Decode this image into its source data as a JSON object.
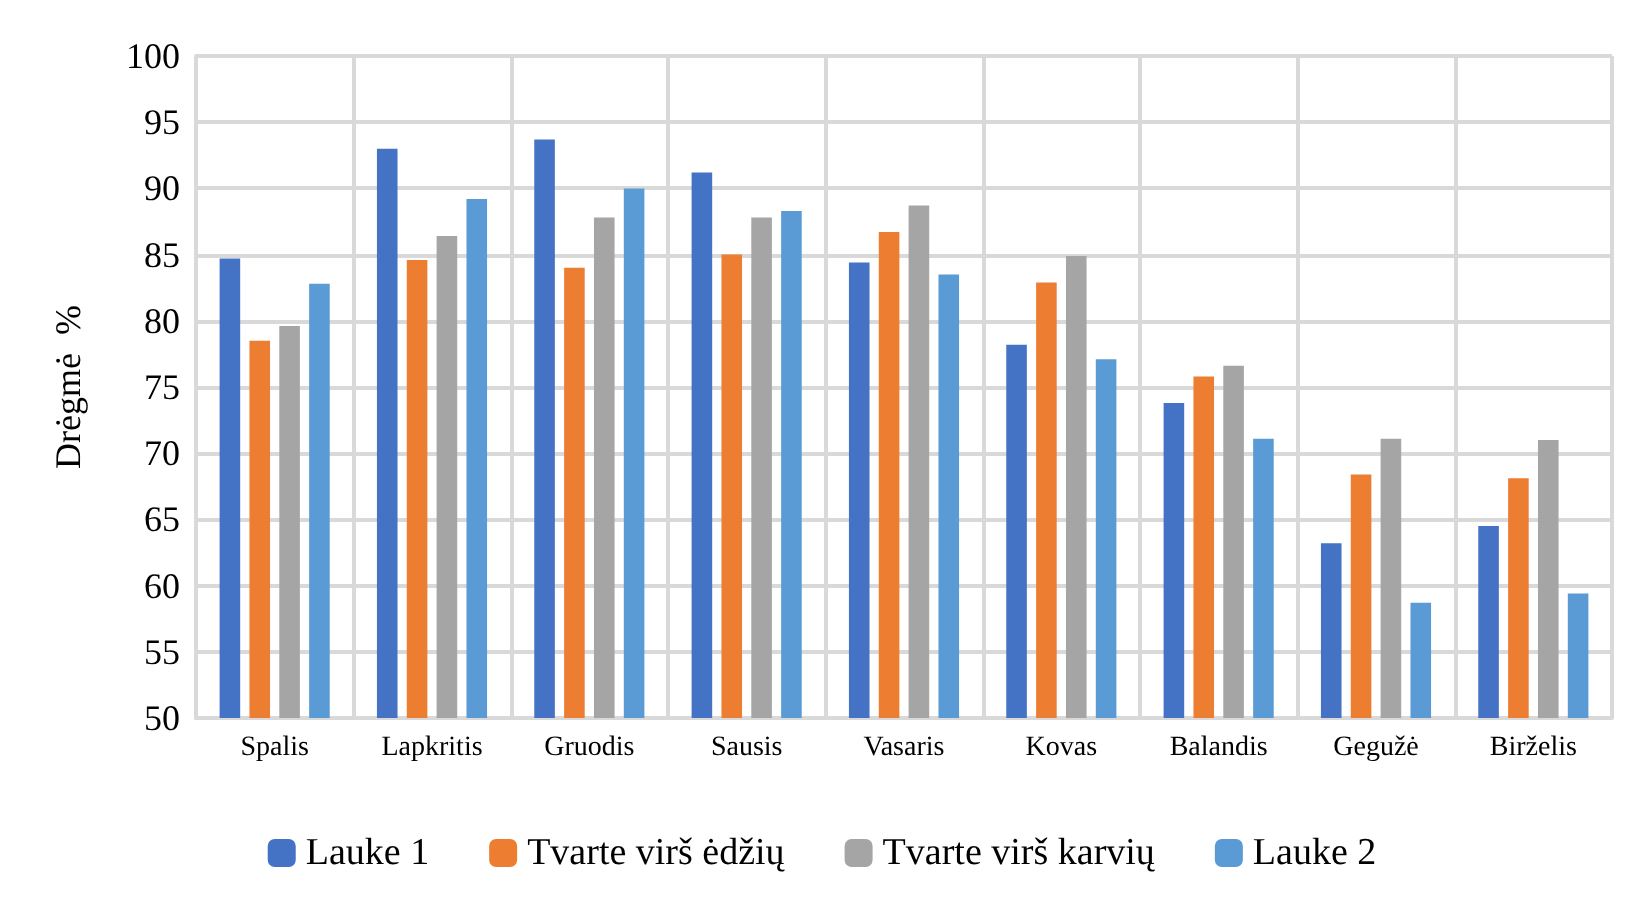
{
  "chart_data": {
    "type": "bar",
    "ylabel": "Drėgmė  %",
    "categories": [
      "Spalis",
      "Lapkritis",
      "Gruodis",
      "Sausis",
      "Vasaris",
      "Kovas",
      "Balandis",
      "Gegužė",
      "Birželis"
    ],
    "series": [
      {
        "name": "Lauke 1",
        "color": "#4472c4",
        "values": [
          84.7,
          93.0,
          93.7,
          91.2,
          84.4,
          78.2,
          73.8,
          63.2,
          64.5
        ]
      },
      {
        "name": "Tvarte virš ėdžių",
        "color": "#ed7d31",
        "values": [
          78.5,
          84.6,
          84.0,
          85.0,
          86.7,
          82.9,
          75.8,
          68.4,
          68.1
        ]
      },
      {
        "name": "Tvarte virš karvių",
        "color": "#a5a5a5",
        "values": [
          79.6,
          86.4,
          87.8,
          87.8,
          88.7,
          84.9,
          76.6,
          71.1,
          71.0
        ]
      },
      {
        "name": "Lauke 2",
        "color": "#5b9bd5",
        "values": [
          82.8,
          89.2,
          90.0,
          88.3,
          83.5,
          77.1,
          71.1,
          58.7,
          59.4
        ]
      }
    ],
    "ylim": [
      50,
      100
    ],
    "yticks": [
      50,
      55,
      60,
      65,
      70,
      75,
      80,
      85,
      90,
      95,
      100
    ],
    "grid": true,
    "legend": "bottom"
  }
}
